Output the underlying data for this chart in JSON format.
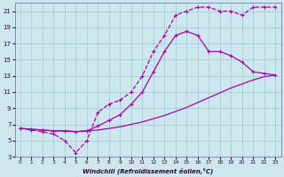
{
  "xlabel": "Windchill (Refroidissement éolien,°C)",
  "bg_color": "#cce8ee",
  "line_color": "#aa00aa",
  "grid_color": "#99cccc",
  "xlim": [
    -0.5,
    23.5
  ],
  "ylim": [
    3,
    22
  ],
  "xticks": [
    0,
    1,
    2,
    3,
    4,
    5,
    6,
    7,
    8,
    9,
    10,
    11,
    12,
    13,
    14,
    15,
    16,
    17,
    18,
    19,
    20,
    21,
    22,
    23
  ],
  "yticks": [
    3,
    5,
    7,
    9,
    11,
    13,
    15,
    17,
    19,
    21
  ],
  "line1_x": [
    0,
    1,
    2,
    3,
    4,
    5,
    6,
    7,
    8,
    9,
    10,
    11,
    12,
    13,
    14,
    15,
    16,
    17,
    18,
    19,
    20,
    21,
    22,
    23
  ],
  "line1_y": [
    6.5,
    6.4,
    6.3,
    6.2,
    6.2,
    6.1,
    6.2,
    6.3,
    6.5,
    6.7,
    7.0,
    7.3,
    7.7,
    8.1,
    8.6,
    9.1,
    9.7,
    10.3,
    10.9,
    11.5,
    12.0,
    12.5,
    12.9,
    13.1
  ],
  "line2_x": [
    0,
    1,
    2,
    3,
    4,
    5,
    6,
    7,
    8,
    9,
    10,
    11,
    12,
    13,
    14,
    15,
    16,
    17,
    18,
    19,
    20,
    21,
    22,
    23
  ],
  "line2_y": [
    6.5,
    6.4,
    6.3,
    6.2,
    6.2,
    6.1,
    6.2,
    6.8,
    7.5,
    8.2,
    9.5,
    11.0,
    13.5,
    16.0,
    18.0,
    18.5,
    18.0,
    16.0,
    16.0,
    15.5,
    14.7,
    13.5,
    13.3,
    13.1
  ],
  "line3_x": [
    0,
    1,
    2,
    3,
    4,
    5,
    6,
    7,
    8,
    9,
    10,
    11,
    12,
    13,
    14,
    15,
    16,
    17,
    18,
    19,
    20,
    21,
    22,
    23
  ],
  "line3_y": [
    6.5,
    6.3,
    6.1,
    5.8,
    5.0,
    3.5,
    5.0,
    8.5,
    9.5,
    10.0,
    11.0,
    13.0,
    16.0,
    18.0,
    20.5,
    21.0,
    21.5,
    21.5,
    21.0,
    21.0,
    20.5,
    21.5,
    21.5,
    21.5
  ]
}
